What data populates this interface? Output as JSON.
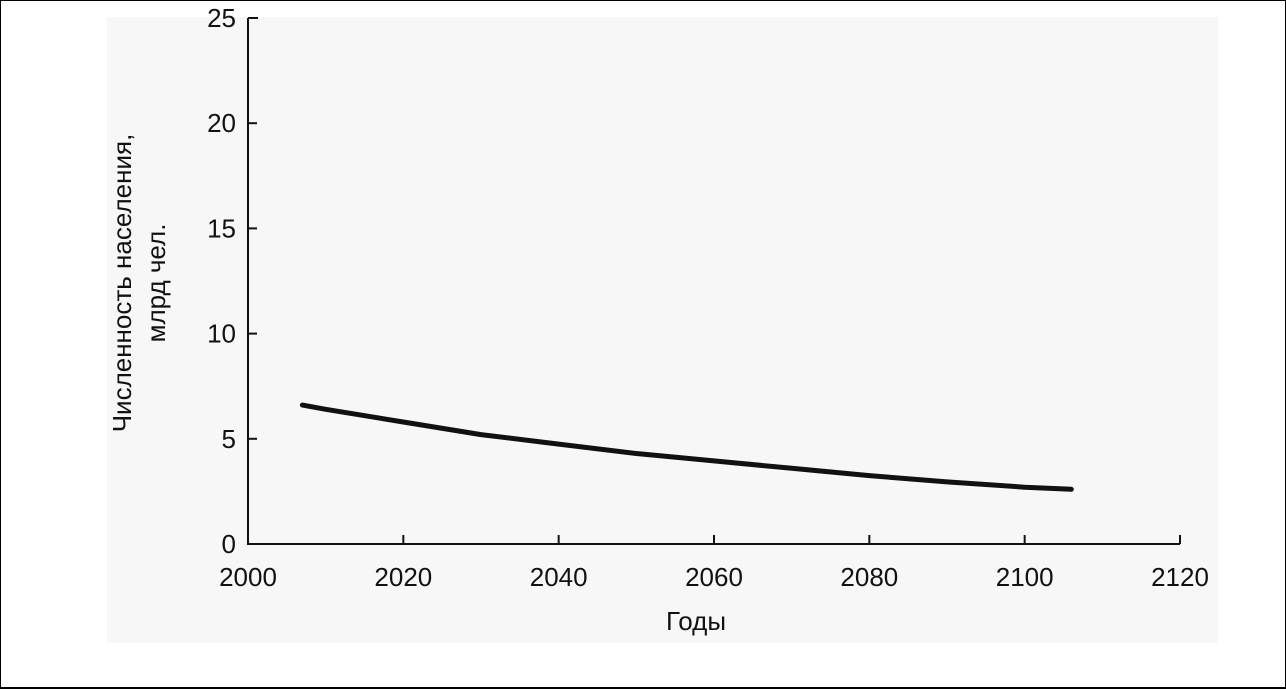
{
  "chart_data": {
    "type": "line",
    "xlabel": "Годы",
    "ylabel_line1": "Численность населения,",
    "ylabel_line2": "млрд чел.",
    "xlim": [
      2000,
      2120
    ],
    "ylim": [
      0,
      25
    ],
    "x_ticks": [
      "2000",
      "2020",
      "2040",
      "2060",
      "2080",
      "2100",
      "2120"
    ],
    "y_ticks": [
      "0",
      "5",
      "10",
      "15",
      "20",
      "25"
    ],
    "grid": false,
    "series": [
      {
        "x": [
          2007,
          2010,
          2020,
          2030,
          2040,
          2050,
          2060,
          2070,
          2080,
          2090,
          2100,
          2106
        ],
        "y": [
          6.6,
          6.4,
          5.8,
          5.2,
          4.75,
          4.3,
          3.95,
          3.6,
          3.25,
          2.95,
          2.7,
          2.6
        ]
      }
    ],
    "line_color": "#111111"
  }
}
